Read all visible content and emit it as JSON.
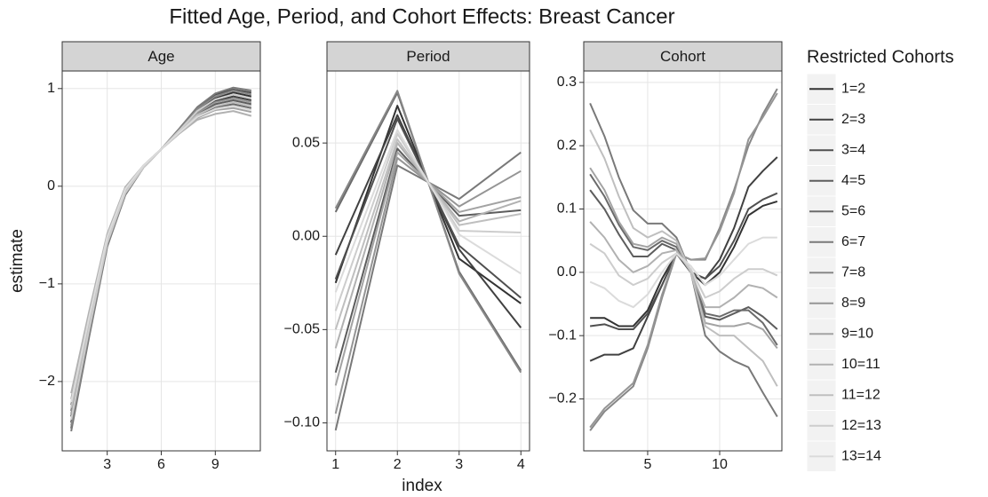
{
  "title": "Fitted Age, Period, and Cohort Effects: Breast Cancer",
  "x_label": "index",
  "y_label": "estimate",
  "legend": {
    "title": "Restricted Cohorts",
    "entries": [
      {
        "name": "1=2",
        "color": "#333333"
      },
      {
        "name": "2=3",
        "color": "#414141"
      },
      {
        "name": "3=4",
        "color": "#4f4f4f"
      },
      {
        "name": "4=5",
        "color": "#5d5d5d"
      },
      {
        "name": "5=6",
        "color": "#6b6b6b"
      },
      {
        "name": "6=7",
        "color": "#797979"
      },
      {
        "name": "7=8",
        "color": "#878787"
      },
      {
        "name": "8=9",
        "color": "#959595"
      },
      {
        "name": "9=10",
        "color": "#a3a3a3"
      },
      {
        "name": "10=11",
        "color": "#b1b1b1"
      },
      {
        "name": "11=12",
        "color": "#bfbfbf"
      },
      {
        "name": "12=13",
        "color": "#cdcdcd"
      },
      {
        "name": "13=14",
        "color": "#dbdbdb"
      }
    ]
  },
  "chart_data": [
    {
      "type": "line",
      "title": "Age",
      "grid": true,
      "x": [
        1,
        2,
        3,
        4,
        5,
        6,
        7,
        8,
        9,
        10,
        11
      ],
      "xlim": [
        0.5,
        11.5
      ],
      "xticks": [
        3,
        6,
        9
      ],
      "ylim": [
        -2.71,
        1.18
      ],
      "yticks": [
        {
          "value": -2,
          "label": "−2"
        },
        {
          "value": -1,
          "label": "−1"
        },
        0,
        1
      ],
      "series": [
        {
          "values": [
            -2.42,
            -1.48,
            -0.59,
            -0.07,
            0.19,
            0.38,
            0.58,
            0.78,
            0.9,
            0.96,
            0.92
          ]
        },
        {
          "values": [
            -2.36,
            -1.44,
            -0.57,
            -0.06,
            0.2,
            0.38,
            0.57,
            0.76,
            0.87,
            0.92,
            0.88
          ]
        },
        {
          "values": [
            -2.48,
            -1.52,
            -0.61,
            -0.09,
            0.19,
            0.38,
            0.58,
            0.8,
            0.94,
            0.99,
            0.96
          ]
        },
        {
          "values": [
            -2.3,
            -1.4,
            -0.55,
            -0.05,
            0.2,
            0.38,
            0.56,
            0.74,
            0.84,
            0.88,
            0.84
          ]
        },
        {
          "values": [
            -2.24,
            -1.36,
            -0.53,
            -0.04,
            0.2,
            0.38,
            0.55,
            0.72,
            0.81,
            0.84,
            0.8
          ]
        },
        {
          "values": [
            -2.51,
            -1.54,
            -0.62,
            -0.09,
            0.19,
            0.38,
            0.59,
            0.81,
            0.95,
            1.01,
            0.98
          ]
        },
        {
          "values": [
            -2.45,
            -1.5,
            -0.6,
            -0.08,
            0.19,
            0.38,
            0.58,
            0.79,
            0.92,
            0.98,
            0.94
          ]
        },
        {
          "values": [
            -2.33,
            -1.42,
            -0.56,
            -0.06,
            0.2,
            0.38,
            0.56,
            0.75,
            0.86,
            0.9,
            0.86
          ]
        },
        {
          "values": [
            -2.18,
            -1.32,
            -0.51,
            -0.03,
            0.21,
            0.38,
            0.54,
            0.7,
            0.78,
            0.8,
            0.76
          ]
        },
        {
          "values": [
            -2.12,
            -1.28,
            -0.49,
            -0.01,
            0.21,
            0.38,
            0.54,
            0.68,
            0.74,
            0.77,
            0.72
          ]
        },
        {
          "values": [
            -2.27,
            -1.38,
            -0.54,
            -0.04,
            0.2,
            0.38,
            0.56,
            0.73,
            0.82,
            0.86,
            0.82
          ]
        },
        {
          "values": [
            -2.39,
            -1.46,
            -0.58,
            -0.07,
            0.19,
            0.38,
            0.57,
            0.77,
            0.89,
            0.94,
            0.9
          ]
        },
        {
          "values": [
            -2.21,
            -1.34,
            -0.52,
            -0.03,
            0.21,
            0.38,
            0.55,
            0.71,
            0.79,
            0.82,
            0.78
          ]
        }
      ]
    },
    {
      "type": "line",
      "title": "Period",
      "grid": true,
      "x": [
        1,
        2,
        3,
        4
      ],
      "xlim": [
        0.86,
        4.14
      ],
      "xticks": [
        1,
        2,
        3,
        4
      ],
      "ylim": [
        -0.115,
        0.0886
      ],
      "yticks": [
        {
          "value": -0.1,
          "label": "−0.10"
        },
        {
          "value": -0.05,
          "label": "−0.05"
        },
        {
          "value": 0,
          "label": "0.00"
        },
        0.05
      ],
      "series": [
        {
          "values": [
            -0.025,
            0.07,
            -0.012,
            -0.036
          ]
        },
        {
          "values": [
            -0.01,
            0.065,
            -0.007,
            -0.049
          ]
        },
        {
          "values": [
            -0.023,
            0.063,
            -0.005,
            -0.033
          ]
        },
        {
          "values": [
            -0.073,
            0.047,
            0.011,
            0.014
          ]
        },
        {
          "values": [
            0.013,
            0.077,
            -0.019,
            -0.072
          ]
        },
        {
          "values": [
            -0.104,
            0.038,
            0.02,
            0.045
          ]
        },
        {
          "values": [
            0.015,
            0.078,
            -0.02,
            -0.073
          ]
        },
        {
          "values": [
            -0.095,
            0.042,
            0.016,
            0.035
          ]
        },
        {
          "values": [
            -0.08,
            0.045,
            0.013,
            0.021
          ]
        },
        {
          "values": [
            -0.06,
            0.05,
            0.008,
            0.019
          ]
        },
        {
          "values": [
            -0.05,
            0.052,
            0.006,
            0.012
          ]
        },
        {
          "values": [
            -0.04,
            0.055,
            0.003,
            0.002
          ]
        },
        {
          "values": [
            -0.03,
            0.057,
            0.001,
            -0.02
          ]
        }
      ]
    },
    {
      "type": "line",
      "title": "Cohort",
      "grid": true,
      "x": [
        1,
        2,
        3,
        4,
        5,
        6,
        7,
        8,
        9,
        10,
        11,
        12,
        13,
        14
      ],
      "xlim": [
        0.56,
        14.32
      ],
      "xticks": [
        5,
        10
      ],
      "ylim": [
        -0.282,
        0.318
      ],
      "yticks": [
        {
          "value": -0.2,
          "label": "−0.2"
        },
        {
          "value": -0.1,
          "label": "−0.1"
        },
        {
          "value": 0,
          "label": "0.0"
        },
        0.1,
        0.2,
        0.3
      ],
      "series": [
        {
          "values": [
            -0.072,
            -0.072,
            -0.085,
            -0.085,
            -0.06,
            -0.01,
            0.03,
            0.0,
            -0.02,
            0.0,
            0.04,
            0.09,
            0.105,
            0.112
          ]
        },
        {
          "values": [
            -0.14,
            -0.13,
            -0.13,
            -0.12,
            -0.07,
            -0.02,
            0.03,
            0.0,
            -0.01,
            0.02,
            0.07,
            0.135,
            0.16,
            0.182
          ]
        },
        {
          "values": [
            -0.085,
            -0.082,
            -0.09,
            -0.09,
            -0.065,
            -0.02,
            0.03,
            0.0,
            -0.01,
            0.01,
            0.05,
            0.1,
            0.115,
            0.125
          ]
        },
        {
          "values": [
            0.13,
            0.1,
            0.06,
            0.025,
            0.025,
            0.045,
            0.035,
            0.0,
            -0.07,
            -0.075,
            -0.065,
            -0.055,
            -0.07,
            -0.09
          ]
        },
        {
          "values": [
            0.155,
            0.12,
            0.075,
            0.04,
            0.035,
            0.05,
            0.04,
            0.0,
            -0.065,
            -0.07,
            -0.06,
            -0.06,
            -0.08,
            -0.115
          ]
        },
        {
          "values": [
            0.267,
            0.215,
            0.15,
            0.098,
            0.077,
            0.077,
            0.055,
            0.0,
            -0.1,
            -0.125,
            -0.14,
            -0.15,
            -0.19,
            -0.228
          ]
        },
        {
          "values": [
            -0.25,
            -0.22,
            -0.2,
            -0.18,
            -0.12,
            -0.04,
            0.03,
            0.02,
            0.02,
            0.07,
            0.13,
            0.2,
            0.25,
            0.29
          ]
        },
        {
          "values": [
            -0.245,
            -0.215,
            -0.195,
            -0.175,
            -0.115,
            -0.035,
            0.03,
            0.02,
            0.022,
            0.065,
            0.125,
            0.21,
            0.245,
            0.283
          ]
        },
        {
          "values": [
            0.165,
            0.13,
            0.08,
            0.045,
            0.04,
            0.055,
            0.045,
            0.0,
            -0.08,
            -0.085,
            -0.085,
            -0.08,
            -0.09,
            -0.12
          ]
        },
        {
          "values": [
            0.08,
            0.055,
            0.02,
            0.0,
            0.01,
            0.03,
            0.035,
            0.0,
            -0.055,
            -0.055,
            -0.04,
            -0.02,
            -0.025,
            -0.04
          ]
        },
        {
          "values": [
            0.225,
            0.18,
            0.12,
            0.07,
            0.055,
            0.065,
            0.05,
            0.0,
            -0.085,
            -0.1,
            -0.1,
            -0.12,
            -0.14,
            -0.18
          ]
        },
        {
          "values": [
            0.045,
            0.03,
            -0.005,
            -0.02,
            -0.01,
            0.015,
            0.03,
            0.005,
            -0.04,
            -0.03,
            -0.01,
            0.005,
            0.005,
            -0.005
          ]
        },
        {
          "values": [
            -0.015,
            -0.025,
            -0.045,
            -0.055,
            -0.035,
            0.0,
            0.03,
            0.01,
            -0.02,
            -0.005,
            0.02,
            0.045,
            0.055,
            0.055
          ]
        }
      ]
    }
  ]
}
